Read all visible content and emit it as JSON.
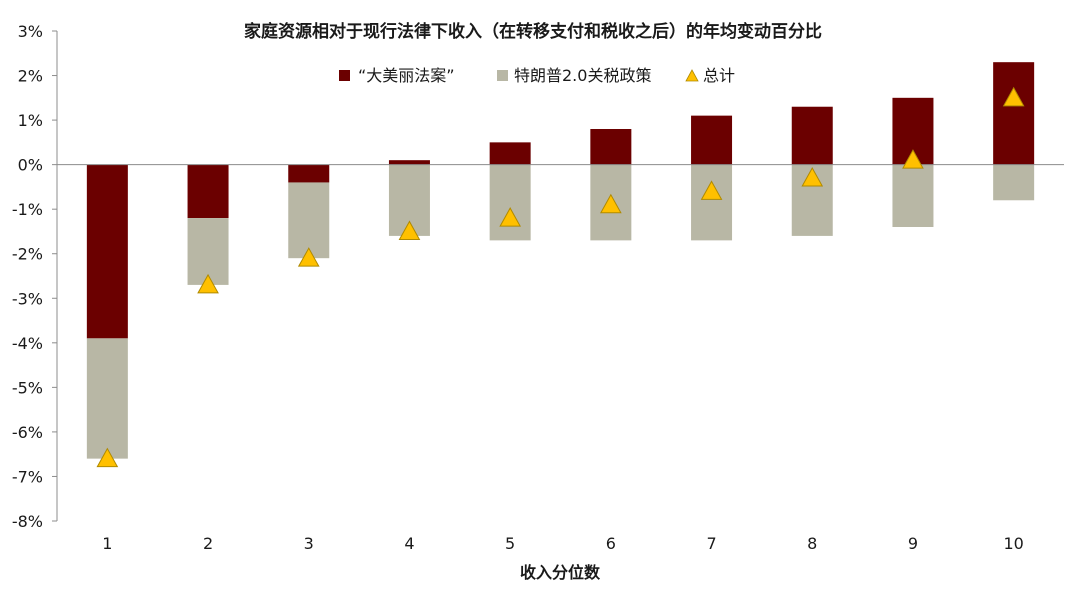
{
  "chart_data": {
    "type": "bar",
    "title": "家庭资源相对于现行法律下收入（在转移支付和税收之后）的年均变动百分比",
    "xlabel": "收入分位数",
    "ylabel": "",
    "categories": [
      "1",
      "2",
      "3",
      "4",
      "5",
      "6",
      "7",
      "8",
      "9",
      "10"
    ],
    "ylim": [
      -8,
      3
    ],
    "y_ticks": [
      3,
      2,
      1,
      0,
      -1,
      -2,
      -3,
      -4,
      -5,
      -6,
      -7,
      -8
    ],
    "y_tick_labels": [
      "3%",
      "2%",
      "1%",
      "0%",
      "-1%",
      "-2%",
      "-3%",
      "-4%",
      "-5%",
      "-6%",
      "-7%",
      "-8%"
    ],
    "legend_position": "top-center",
    "series": [
      {
        "name": "“大美丽法案”",
        "kind": "bar",
        "color": "#6b0000",
        "values": [
          -3.9,
          -1.2,
          -0.4,
          0.1,
          0.5,
          0.8,
          1.1,
          1.3,
          1.5,
          2.3
        ]
      },
      {
        "name": "特朗普2.0关税政策",
        "kind": "bar",
        "color": "#b8b7a5",
        "values": [
          -2.7,
          -1.5,
          -1.7,
          -1.6,
          -1.7,
          -1.7,
          -1.7,
          -1.6,
          -1.4,
          -0.8
        ]
      },
      {
        "name": "总计",
        "kind": "marker",
        "color": "#ffc000",
        "values": [
          -6.6,
          -2.7,
          -2.1,
          -1.5,
          -1.2,
          -0.9,
          -0.6,
          -0.3,
          0.1,
          1.5
        ]
      }
    ]
  }
}
